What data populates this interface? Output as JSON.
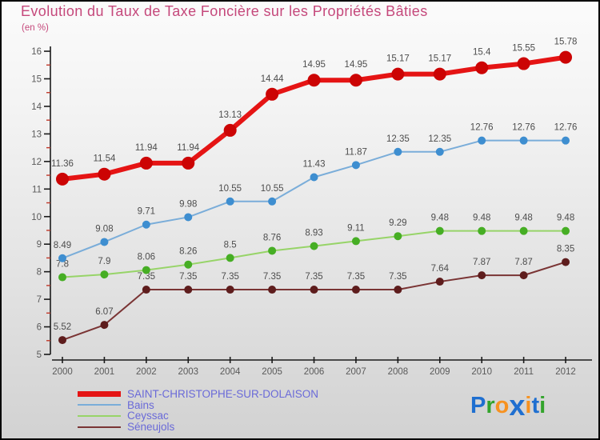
{
  "title": "Evolution du Taux de Taxe Foncière sur les Propriétés Bâties",
  "subtitle": "(en %)",
  "colors": {
    "title": "#c5487b",
    "subtitle": "#c5487b",
    "axis": "#1a1a1a",
    "tick_label": "#5a5a5a",
    "minor_tick": "#c0392b",
    "value_label": "#4d4d4d",
    "legend_text": "#6a6ad8",
    "background_top": "#fbfbfb",
    "background_bottom": "#d2d2d2"
  },
  "chart_data": {
    "type": "line",
    "x": [
      2000,
      2001,
      2002,
      2003,
      2004,
      2005,
      2006,
      2007,
      2008,
      2009,
      2010,
      2011,
      2012
    ],
    "xlabel": "",
    "ylabel": "",
    "ylim": [
      5,
      16
    ],
    "y_major_step": 1,
    "y_minor_step": 0.5,
    "grid": "off",
    "legend_position": "bottom-left",
    "series": [
      {
        "name": "SAINT-CHRISTOPHE-SUR-DOLAISON",
        "color": "#e51414",
        "marker_color": "#cc0404",
        "line_width": 6,
        "marker_radius": 7.5,
        "values": [
          11.36,
          11.54,
          11.94,
          11.94,
          13.13,
          14.44,
          14.95,
          14.95,
          15.17,
          15.17,
          15.4,
          15.55,
          15.78
        ]
      },
      {
        "name": "Bains",
        "color": "#7aadd9",
        "marker_color": "#3e8ed0",
        "line_width": 2,
        "marker_radius": 4.5,
        "values": [
          8.49,
          9.08,
          9.71,
          9.98,
          10.55,
          10.55,
          11.43,
          11.87,
          12.35,
          12.35,
          12.76,
          12.76,
          12.76
        ]
      },
      {
        "name": "Ceyssac",
        "color": "#97d468",
        "marker_color": "#46ae24",
        "line_width": 2,
        "marker_radius": 4.5,
        "values": [
          7.8,
          7.9,
          8.06,
          8.26,
          8.5,
          8.76,
          8.93,
          9.11,
          9.29,
          9.48,
          9.48,
          9.48,
          9.48
        ]
      },
      {
        "name": "Séneujols",
        "color": "#7a3434",
        "marker_color": "#5e1d1d",
        "line_width": 2,
        "marker_radius": 4.5,
        "values": [
          5.52,
          6.07,
          7.35,
          7.35,
          7.35,
          7.35,
          7.35,
          7.35,
          7.35,
          7.64,
          7.87,
          7.87,
          8.35
        ]
      }
    ]
  },
  "logo": {
    "text": "Proxiti",
    "letters": [
      {
        "ch": "P",
        "color": "#1f6fd0",
        "big": false
      },
      {
        "ch": "r",
        "color": "#33a42c",
        "big": false
      },
      {
        "ch": "o",
        "color": "#f79220",
        "big": false
      },
      {
        "ch": "x",
        "color": "#1f6fd0",
        "big": true
      },
      {
        "ch": "i",
        "color": "#f79220",
        "big": false
      },
      {
        "ch": "t",
        "color": "#1f6fd0",
        "big": false
      },
      {
        "ch": "i",
        "color": "#33a42c",
        "big": false
      }
    ]
  }
}
